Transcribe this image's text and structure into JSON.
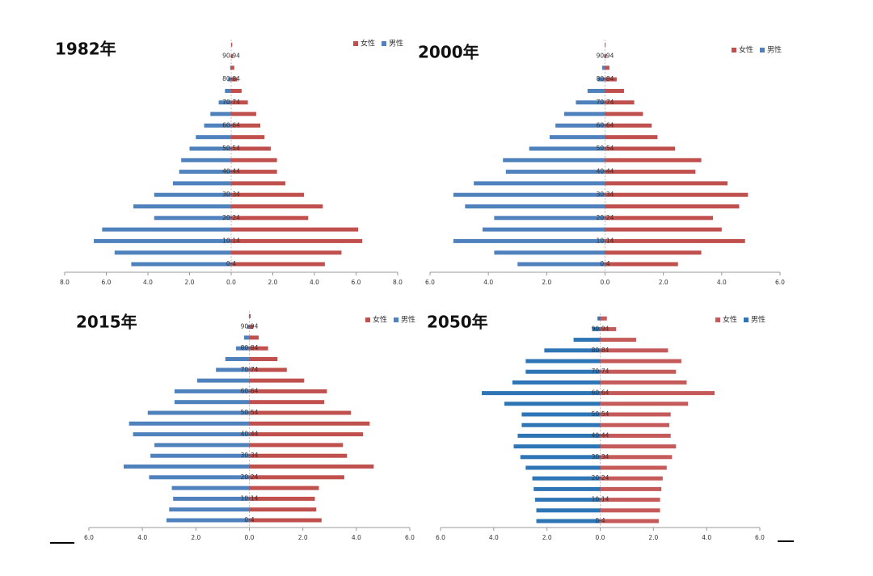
{
  "chart_data": [
    {
      "type": "pyramid",
      "title": "1982年",
      "categories": [
        "0-4",
        null,
        "10-14",
        null,
        "20-24",
        null,
        "30-34",
        null,
        "40-44",
        null,
        "50-54",
        null,
        "60-64",
        null,
        "70-74",
        null,
        "80-84",
        null,
        "90-94",
        null
      ],
      "series": [
        {
          "name": "女性",
          "color": "#c0504d",
          "values": [
            4.5,
            5.3,
            6.3,
            6.1,
            3.7,
            4.4,
            3.5,
            2.6,
            2.2,
            2.2,
            1.9,
            1.6,
            1.4,
            1.2,
            0.8,
            0.5,
            0.3,
            0.15,
            0.08,
            0.05
          ]
        },
        {
          "name": "男性",
          "color": "#4f81bd",
          "values": [
            -4.8,
            -5.6,
            -6.6,
            -6.2,
            -3.7,
            -4.7,
            -3.7,
            -2.8,
            -2.5,
            -2.4,
            -2.0,
            -1.7,
            -1.3,
            -1.0,
            -0.6,
            -0.3,
            -0.15,
            -0.05,
            -0.02,
            0
          ]
        }
      ],
      "xlim": [
        -8,
        8
      ],
      "xticks": [
        {
          "value": -8,
          "label": "8.0"
        },
        {
          "value": -6,
          "label": "6.0"
        },
        {
          "value": -4,
          "label": "4.0"
        },
        {
          "value": -2,
          "label": "2.0"
        },
        {
          "value": 0,
          "label": "0.0"
        },
        {
          "value": 2,
          "label": "2.0"
        },
        {
          "value": 4,
          "label": "4.0"
        },
        {
          "value": 6,
          "label": "6.0"
        },
        {
          "value": 8,
          "label": "8.0"
        }
      ],
      "legend": "upper right"
    },
    {
      "type": "pyramid",
      "title": "2000年",
      "categories": [
        "0-4",
        null,
        "10-14",
        null,
        "20-24",
        null,
        "30-34",
        null,
        "40-44",
        null,
        "50-54",
        null,
        "60-64",
        null,
        "70-74",
        null,
        "80-84",
        null,
        "90-94",
        null
      ],
      "series": [
        {
          "name": "女性",
          "color": "#c0504d",
          "values": [
            2.5,
            3.3,
            4.8,
            4.0,
            3.7,
            4.6,
            4.9,
            4.2,
            3.1,
            3.3,
            2.4,
            1.8,
            1.6,
            1.3,
            1.0,
            0.65,
            0.4,
            0.15,
            0.05,
            0.02
          ]
        },
        {
          "name": "男性",
          "color": "#4f81bd",
          "values": [
            -3.0,
            -3.8,
            -5.2,
            -4.2,
            -3.8,
            -4.8,
            -5.2,
            -4.5,
            -3.4,
            -3.5,
            -2.6,
            -1.9,
            -1.7,
            -1.4,
            -1.0,
            -0.6,
            -0.25,
            -0.1,
            -0.03,
            -0.01
          ]
        }
      ],
      "xlim": [
        -6,
        6
      ],
      "xticks": [
        {
          "value": -6,
          "label": "6.0"
        },
        {
          "value": -4,
          "label": "4.0"
        },
        {
          "value": -2,
          "label": "2.0"
        },
        {
          "value": 0,
          "label": "0.0"
        },
        {
          "value": 2,
          "label": "2.0"
        },
        {
          "value": 4,
          "label": "4.0"
        },
        {
          "value": 6,
          "label": "6.0"
        }
      ],
      "legend": "upper right"
    },
    {
      "type": "pyramid",
      "title": "2015年",
      "categories": [
        "0-4",
        null,
        "10-14",
        null,
        "20-24",
        null,
        "30-34",
        null,
        "40-44",
        null,
        "50-54",
        null,
        "60-64",
        null,
        "70-74",
        null,
        "80-84",
        null,
        "90-94",
        null
      ],
      "series": [
        {
          "name": "女性",
          "color": "#c0504d",
          "values": [
            2.7,
            2.5,
            2.45,
            2.6,
            3.55,
            4.65,
            3.65,
            3.5,
            4.25,
            4.5,
            3.8,
            2.8,
            2.9,
            2.05,
            1.4,
            1.05,
            0.7,
            0.35,
            0.15,
            0.05
          ]
        },
        {
          "name": "男性",
          "color": "#4f81bd",
          "values": [
            -3.1,
            -3.0,
            -2.85,
            -2.9,
            -3.75,
            -4.7,
            -3.7,
            -3.55,
            -4.35,
            -4.5,
            -3.8,
            -2.8,
            -2.8,
            -1.95,
            -1.25,
            -0.9,
            -0.5,
            -0.2,
            -0.08,
            -0.02
          ]
        }
      ],
      "xlim": [
        -6,
        6
      ],
      "xticks": [
        {
          "value": -6,
          "label": "6.0"
        },
        {
          "value": -4,
          "label": "4.0"
        },
        {
          "value": -2,
          "label": "2.0"
        },
        {
          "value": 0,
          "label": "0.0"
        },
        {
          "value": 2,
          "label": "2.0"
        },
        {
          "value": 4,
          "label": "4.0"
        },
        {
          "value": 6,
          "label": "6.0"
        }
      ],
      "legend": "upper right"
    },
    {
      "type": "pyramid",
      "title": "2050年",
      "categories": [
        "0-4",
        null,
        "10-14",
        null,
        "20-24",
        null,
        "30-34",
        null,
        "40-44",
        null,
        "50-54",
        null,
        "60-64",
        null,
        "70-74",
        null,
        "80-84",
        null,
        "90-94",
        null
      ],
      "series": [
        {
          "name": "女性",
          "color": "#c45a5a",
          "values": [
            2.2,
            2.25,
            2.25,
            2.3,
            2.35,
            2.5,
            2.7,
            2.85,
            2.65,
            2.6,
            2.65,
            3.3,
            4.3,
            3.25,
            2.85,
            3.05,
            2.55,
            1.35,
            0.6,
            0.25
          ]
        },
        {
          "name": "男性",
          "color": "#2e75b6",
          "values": [
            -2.4,
            -2.4,
            -2.45,
            -2.5,
            -2.55,
            -2.8,
            -3.0,
            -3.25,
            -3.1,
            -2.95,
            -2.95,
            -3.6,
            -4.45,
            -3.3,
            -2.8,
            -2.8,
            -2.1,
            -1.0,
            -0.3,
            -0.1
          ]
        }
      ],
      "xlim": [
        -6,
        6
      ],
      "xticks": [
        {
          "value": -6,
          "label": "6.0"
        },
        {
          "value": -4,
          "label": "4.0"
        },
        {
          "value": -2,
          "label": "2.0"
        },
        {
          "value": 0,
          "label": "0.0"
        },
        {
          "value": 2,
          "label": "2.0"
        },
        {
          "value": 4,
          "label": "4.0"
        },
        {
          "value": 6,
          "label": "6.0"
        }
      ],
      "legend": "upper right"
    }
  ]
}
